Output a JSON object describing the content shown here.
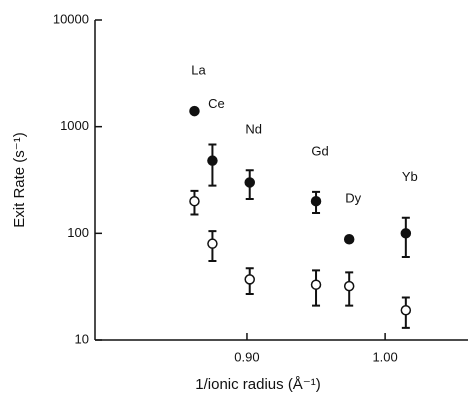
{
  "chart_data": {
    "type": "scatter",
    "x_label": "1/ionic radius (Å⁻¹)",
    "y_label": "Exit Rate (s⁻¹)",
    "log_y": true,
    "xlim": [
      0.79,
      1.06
    ],
    "xticks": [
      {
        "value": 0.9,
        "label": "0.90"
      },
      {
        "value": 1.0,
        "label": "1.00"
      }
    ],
    "ylim": [
      10,
      10000
    ],
    "yticks": [
      10,
      100,
      1000,
      10000
    ],
    "x": [
      0.862,
      0.875,
      0.902,
      0.95,
      0.974,
      1.015
    ],
    "point_labels": [
      "La",
      "Ce",
      "Nd",
      "Gd",
      "Dy",
      "Yb"
    ],
    "series": [
      {
        "filled": true,
        "color": "#111111",
        "values": [
          1400,
          480,
          300,
          200,
          88,
          100
        ],
        "yerr": [
          null,
          200,
          90,
          45,
          null,
          40
        ]
      },
      {
        "filled": false,
        "color": "#111111",
        "values": [
          200,
          80,
          37,
          33,
          32,
          19
        ],
        "yerr": [
          50,
          25,
          10,
          12,
          11,
          6
        ]
      }
    ]
  }
}
